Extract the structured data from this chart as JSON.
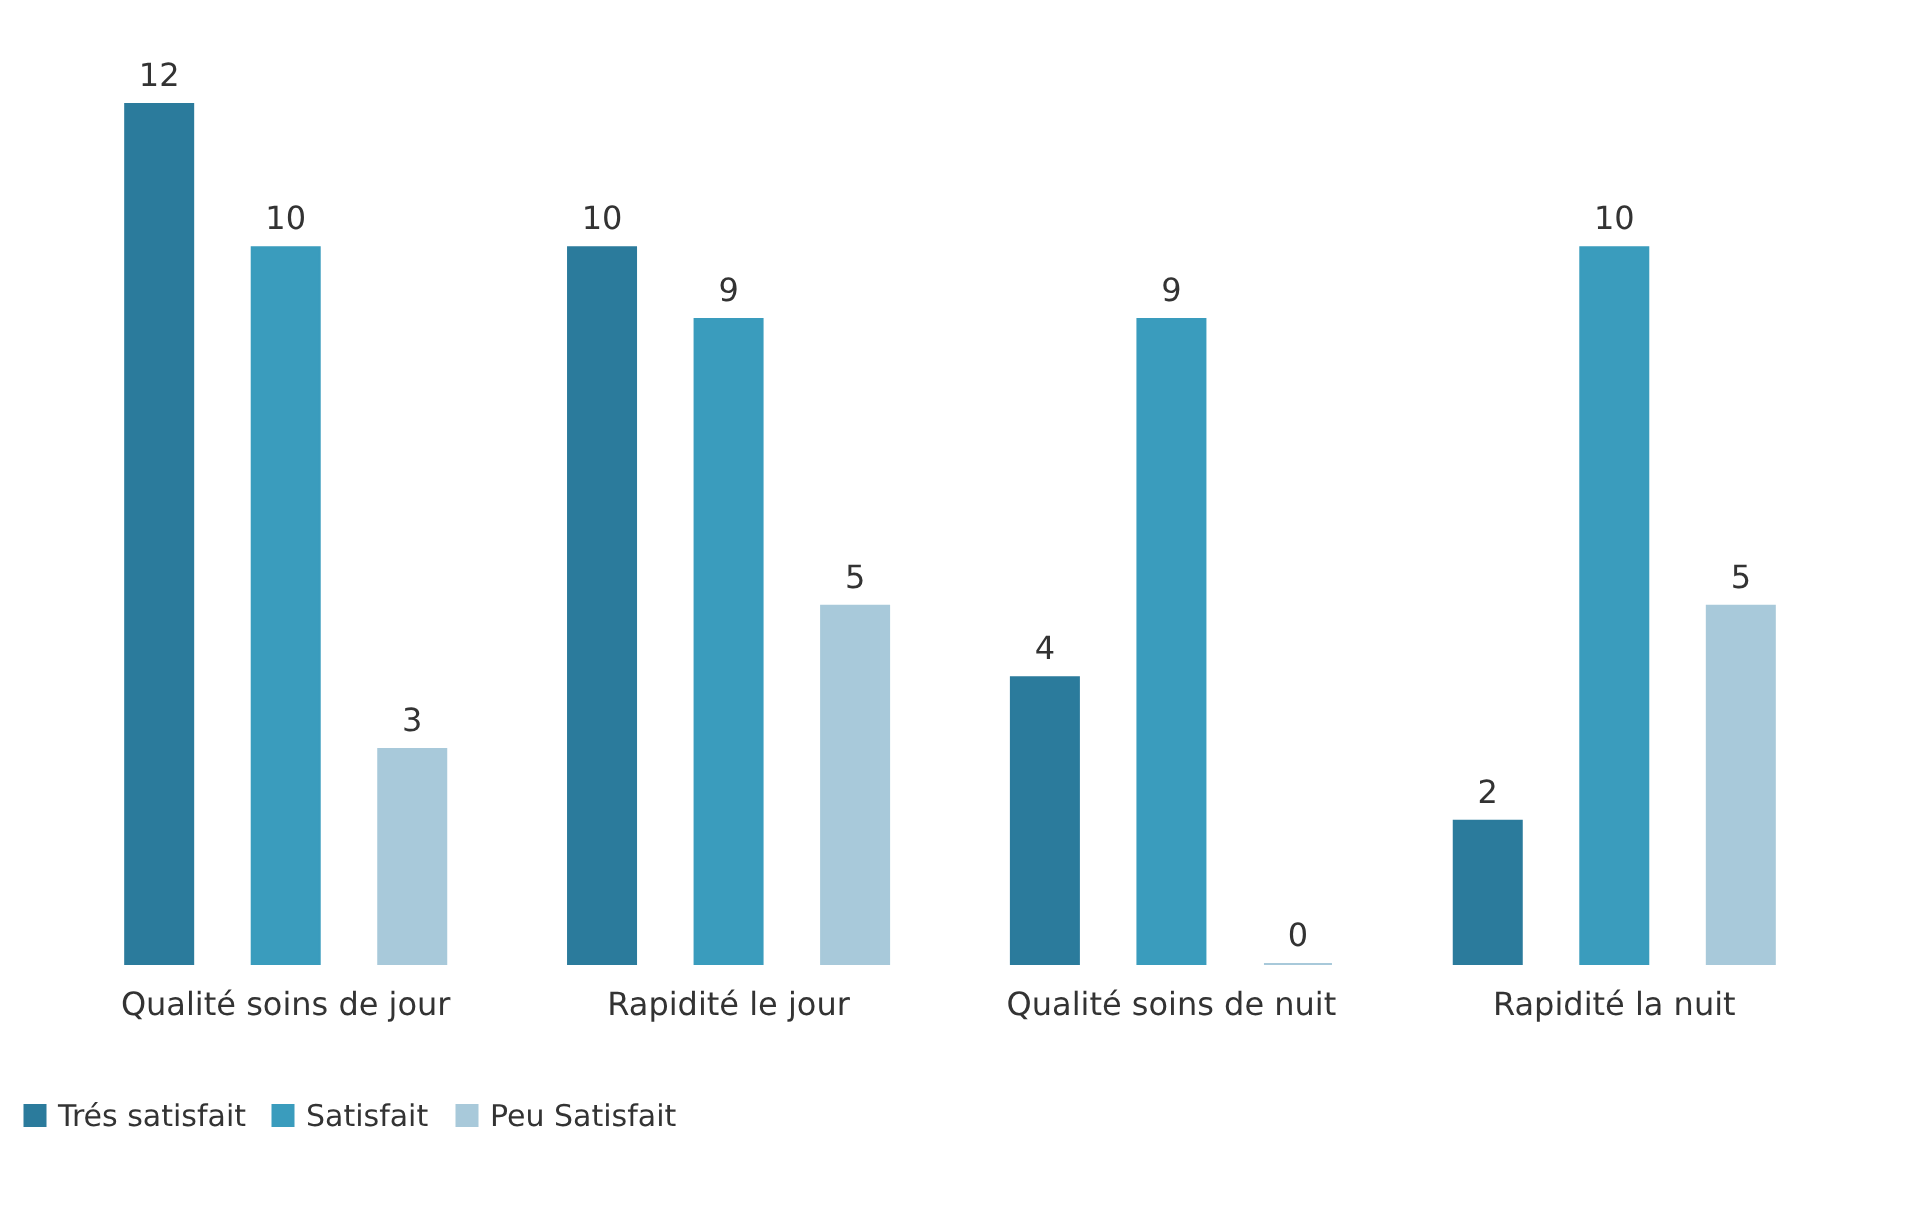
{
  "chart_data": {
    "type": "bar",
    "categories": [
      "Qualité soins de jour",
      "Rapidité le jour",
      "Qualité soins de nuit",
      "Rapidité la nuit"
    ],
    "series": [
      {
        "name": "Trés satisfait",
        "color": "#2b7b9c",
        "values": [
          12,
          10,
          4,
          2
        ]
      },
      {
        "name": "Satisfait",
        "color": "#3a9cbd",
        "values": [
          10,
          9,
          9,
          10
        ]
      },
      {
        "name": "Peu Satisfait",
        "color": "#a8c9da",
        "values": [
          3,
          5,
          0,
          5
        ]
      }
    ],
    "data_labels": true,
    "legend": "bottom",
    "tick_labels": "x"
  }
}
